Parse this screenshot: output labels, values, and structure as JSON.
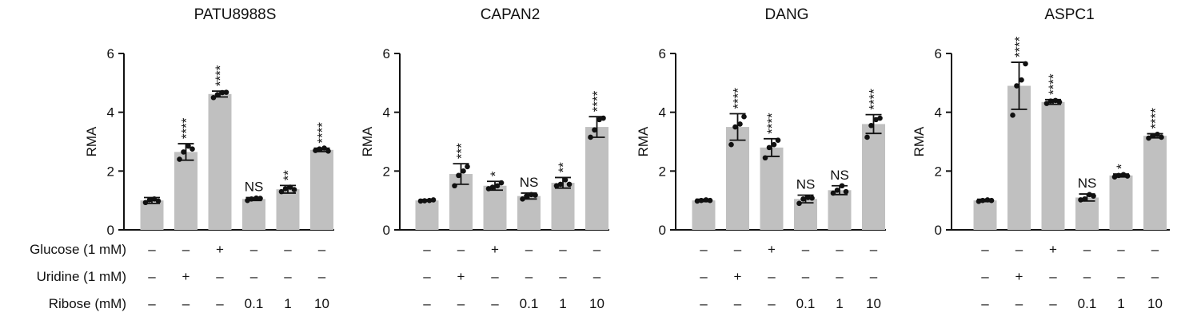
{
  "figure": {
    "row_labels": [
      "Glucose (1 mM)",
      "Uridine (1 mM)",
      "Ribose (mM)"
    ],
    "conditions": {
      "glucose": [
        "–",
        "–",
        "+",
        "–",
        "–",
        "–"
      ],
      "uridine": [
        "–",
        "+",
        "–",
        "–",
        "–",
        "–"
      ],
      "ribose": [
        "–",
        "–",
        "–",
        "0.1",
        "1",
        "10"
      ]
    },
    "bar_color": "#c0c0c0"
  },
  "chart_data": [
    {
      "type": "bar",
      "title": "PATU8988S",
      "ylabel": "RMA",
      "ylim": [
        0,
        6
      ],
      "yticks": [
        "0",
        "2",
        "4",
        "6"
      ],
      "values": [
        1.0,
        2.65,
        4.62,
        1.05,
        1.38,
        2.72
      ],
      "error": [
        0.1,
        0.28,
        0.1,
        0.05,
        0.13,
        0.06
      ],
      "points": [
        [
          0.93,
          1.02,
          1.05,
          0.98
        ],
        [
          2.4,
          2.65,
          2.85,
          2.75
        ],
        [
          4.5,
          4.6,
          4.67,
          4.68
        ],
        [
          1.0,
          1.05,
          1.08,
          1.07
        ],
        [
          1.3,
          1.4,
          1.45,
          1.37
        ],
        [
          2.7,
          2.75,
          2.78,
          2.68
        ]
      ],
      "significance": [
        "",
        "****",
        "****",
        "NS",
        "**",
        "****"
      ]
    },
    {
      "type": "bar",
      "title": "CAPAN2",
      "ylabel": "RMA",
      "ylim": [
        0,
        6
      ],
      "yticks": [
        "0",
        "2",
        "4",
        "6"
      ],
      "values": [
        1.0,
        1.9,
        1.5,
        1.15,
        1.6,
        3.5
      ],
      "error": [
        0.03,
        0.35,
        0.15,
        0.1,
        0.18,
        0.35
      ],
      "points": [
        [
          0.98,
          0.99,
          1.0,
          1.02
        ],
        [
          1.5,
          1.85,
          2.0,
          2.15
        ],
        [
          1.4,
          1.45,
          1.5,
          1.6
        ],
        [
          1.05,
          1.15,
          1.2,
          1.18
        ],
        [
          1.5,
          1.55,
          1.7,
          1.55
        ],
        [
          3.15,
          3.4,
          3.75,
          3.8
        ]
      ],
      "significance": [
        "",
        "***",
        "*",
        "NS",
        "**",
        "****"
      ]
    },
    {
      "type": "bar",
      "title": "DANG",
      "ylabel": "RMA",
      "ylim": [
        0,
        6
      ],
      "yticks": [
        "0",
        "2",
        "4",
        "6"
      ],
      "values": [
        1.0,
        3.5,
        2.8,
        1.05,
        1.35,
        3.6
      ],
      "error": [
        0.04,
        0.45,
        0.3,
        0.13,
        0.15,
        0.32
      ],
      "points": [
        [
          0.98,
          1.0,
          1.02,
          1.0
        ],
        [
          2.9,
          3.5,
          3.6,
          3.85
        ],
        [
          2.45,
          2.8,
          2.9,
          3.05
        ],
        [
          0.9,
          1.05,
          1.1,
          1.08
        ],
        [
          1.25,
          1.35,
          1.5,
          1.3
        ],
        [
          3.15,
          3.55,
          3.75,
          3.8
        ]
      ],
      "significance": [
        "",
        "****",
        "****",
        "NS",
        "NS",
        "****"
      ]
    },
    {
      "type": "bar",
      "title": "ASPC1",
      "ylabel": "RMA",
      "ylim": [
        0,
        6
      ],
      "yticks": [
        "0",
        "2",
        "4",
        "6"
      ],
      "values": [
        1.0,
        4.9,
        4.35,
        1.1,
        1.85,
        3.2
      ],
      "error": [
        0.04,
        0.8,
        0.08,
        0.12,
        0.05,
        0.07
      ],
      "points": [
        [
          0.97,
          1.0,
          1.02,
          1.0
        ],
        [
          3.9,
          4.9,
          5.1,
          5.65
        ],
        [
          4.3,
          4.38,
          4.4,
          4.35
        ],
        [
          1.02,
          1.05,
          1.2,
          1.15
        ],
        [
          1.8,
          1.85,
          1.88,
          1.83
        ],
        [
          3.12,
          3.2,
          3.25,
          3.15
        ]
      ],
      "significance": [
        "",
        "****",
        "****",
        "NS",
        "*",
        "****"
      ]
    }
  ]
}
